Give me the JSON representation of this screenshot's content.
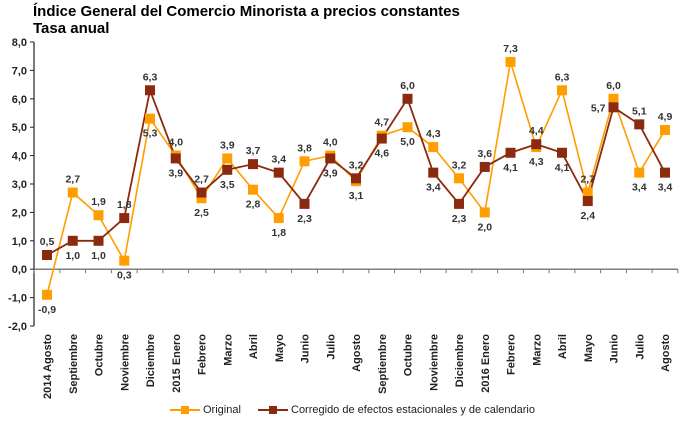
{
  "chart_data": {
    "type": "line",
    "title": "Índice General del Comercio Minorista a precios constantes",
    "subtitle": "Tasa anual",
    "xlabel": "",
    "ylabel": "",
    "ylim": [
      -2,
      8
    ],
    "yticks": [
      "8,0",
      "7,0",
      "6,0",
      "5,0",
      "4,0",
      "3,0",
      "2,0",
      "1,0",
      "0,0",
      "-1,0",
      "-2,0"
    ],
    "ytick_values": [
      8,
      7,
      6,
      5,
      4,
      3,
      2,
      1,
      0,
      -1,
      -2
    ],
    "grid": false,
    "legend_position": "bottom",
    "categories": [
      "2014 Agosto",
      "Septiembre",
      "Octubre",
      "Noviembre",
      "Diciembre",
      "2015 Enero",
      "Febrero",
      "Marzo",
      "Abril",
      "Mayo",
      "Junio",
      "Julio",
      "Agosto",
      "Septiembre",
      "Octubre",
      "Noviembre",
      "Diciembre",
      "2016 Enero",
      "Febrero",
      "Marzo",
      "Abril",
      "Mayo",
      "Junio",
      "Julio",
      "Agosto"
    ],
    "series": [
      {
        "name": "Original",
        "color": "#FF9E00",
        "values": [
          -0.9,
          2.7,
          1.9,
          0.3,
          5.3,
          4.0,
          2.5,
          3.9,
          2.8,
          1.8,
          3.8,
          4.0,
          3.1,
          4.7,
          5.0,
          4.3,
          3.2,
          2.0,
          7.3,
          4.3,
          6.3,
          2.7,
          6.0,
          3.4,
          4.9
        ],
        "labels": [
          "-0,9",
          "2,7",
          "1,9",
          "0,3",
          "5,3",
          "4,0",
          "2,5",
          "3,9",
          "2,8",
          "1,8",
          "3,8",
          "4,0",
          "3,1",
          "4,7",
          "5,0",
          "4,3",
          "3,2",
          "2,0",
          "7,3",
          "4,3",
          "6,3",
          "2,7",
          "6,0",
          "3,4",
          "4,9"
        ],
        "label_pos": [
          "below",
          "above",
          "above",
          "below",
          "below",
          "above",
          "below",
          "above",
          "below",
          "below",
          "above",
          "above",
          "below",
          "above",
          "below",
          "above",
          "above",
          "below",
          "above",
          "below",
          "above",
          "above",
          "above",
          "below",
          "above"
        ]
      },
      {
        "name": "Corregido de efectos estacionales y de calendario",
        "color": "#8B2A0E",
        "values": [
          0.5,
          1.0,
          1.0,
          1.8,
          6.3,
          3.9,
          2.7,
          3.5,
          3.7,
          3.4,
          2.3,
          3.9,
          3.2,
          4.6,
          6.0,
          3.4,
          2.3,
          3.6,
          4.1,
          4.4,
          4.1,
          2.4,
          5.7,
          5.1,
          3.4
        ],
        "labels": [
          "0,5",
          "1,0",
          "1,0",
          "1,8",
          "6,3",
          "3,9",
          "2,7",
          "3,5",
          "3,7",
          "3,4",
          "2,3",
          "3,9",
          "3,2",
          "4,6",
          "6,0",
          "3,4",
          "2,3",
          "3,6",
          "4,1",
          "4,4",
          "4,1",
          "2,4",
          "5,7",
          "5,1",
          "3,4"
        ],
        "label_pos": [
          "above",
          "below",
          "below",
          "above",
          "above",
          "below",
          "above",
          "below",
          "above",
          "above",
          "below",
          "below",
          "above",
          "below",
          "above",
          "below",
          "below",
          "above",
          "below",
          "above",
          "below",
          "below",
          "left",
          "above",
          "below"
        ]
      }
    ]
  }
}
